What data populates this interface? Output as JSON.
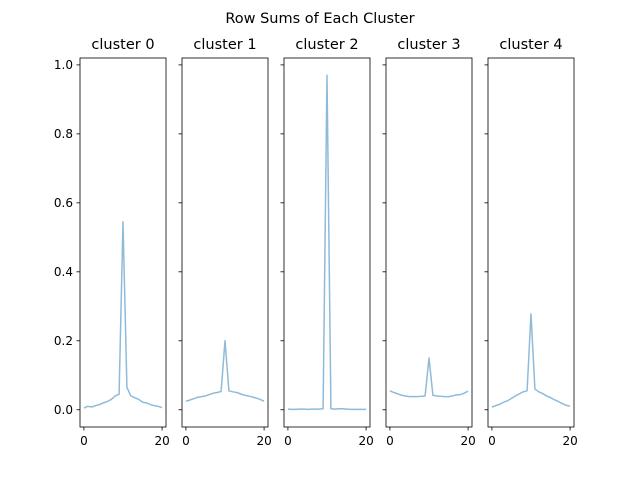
{
  "chart_data": {
    "type": "line",
    "title": "Row Sums of Each Cluster",
    "xlim": [
      -1.0,
      21.0
    ],
    "ylim": [
      -0.05,
      1.02
    ],
    "x_ticks": [
      0,
      20
    ],
    "y_ticks": [
      0.0,
      0.2,
      0.4,
      0.6,
      0.8,
      1.0
    ],
    "y_tick_labels": [
      "0.0",
      "0.2",
      "0.4",
      "0.6",
      "0.8",
      "1.0"
    ],
    "sharey": true,
    "line_color": "#1f77b4",
    "line_alpha": 0.5,
    "panels": [
      {
        "title": "cluster 0",
        "x": [
          0,
          1,
          2,
          3,
          4,
          5,
          6,
          7,
          8,
          9,
          10,
          11,
          12,
          13,
          14,
          15,
          16,
          17,
          18,
          19,
          20
        ],
        "y": [
          0.005,
          0.01,
          0.008,
          0.012,
          0.015,
          0.02,
          0.024,
          0.03,
          0.04,
          0.045,
          0.545,
          0.065,
          0.04,
          0.035,
          0.03,
          0.022,
          0.02,
          0.015,
          0.012,
          0.01,
          0.006
        ]
      },
      {
        "title": "cluster 1",
        "x": [
          0,
          1,
          2,
          3,
          4,
          5,
          6,
          7,
          8,
          9,
          10,
          11,
          12,
          13,
          14,
          15,
          16,
          17,
          18,
          19,
          20
        ],
        "y": [
          0.025,
          0.028,
          0.032,
          0.036,
          0.038,
          0.04,
          0.044,
          0.048,
          0.05,
          0.053,
          0.2,
          0.055,
          0.052,
          0.05,
          0.046,
          0.042,
          0.04,
          0.037,
          0.034,
          0.03,
          0.025
        ]
      },
      {
        "title": "cluster 2",
        "x": [
          0,
          1,
          2,
          3,
          4,
          5,
          6,
          7,
          8,
          9,
          10,
          11,
          12,
          13,
          14,
          15,
          16,
          17,
          18,
          19,
          20
        ],
        "y": [
          0.002,
          0.001,
          0.001,
          0.002,
          0.002,
          0.001,
          0.002,
          0.002,
          0.002,
          0.003,
          0.97,
          0.003,
          0.002,
          0.003,
          0.003,
          0.002,
          0.001,
          0.001,
          0.001,
          0.001,
          0.001
        ]
      },
      {
        "title": "cluster 3",
        "x": [
          0,
          1,
          2,
          3,
          4,
          5,
          6,
          7,
          8,
          9,
          10,
          11,
          12,
          13,
          14,
          15,
          16,
          17,
          18,
          19,
          20
        ],
        "y": [
          0.055,
          0.05,
          0.046,
          0.042,
          0.04,
          0.038,
          0.038,
          0.038,
          0.039,
          0.04,
          0.15,
          0.042,
          0.04,
          0.039,
          0.038,
          0.038,
          0.04,
          0.043,
          0.044,
          0.048,
          0.054
        ]
      },
      {
        "title": "cluster 4",
        "x": [
          0,
          1,
          2,
          3,
          4,
          5,
          6,
          7,
          8,
          9,
          10,
          11,
          12,
          13,
          14,
          15,
          16,
          17,
          18,
          19,
          20
        ],
        "y": [
          0.008,
          0.012,
          0.016,
          0.022,
          0.026,
          0.033,
          0.04,
          0.046,
          0.052,
          0.055,
          0.278,
          0.06,
          0.052,
          0.047,
          0.04,
          0.035,
          0.029,
          0.024,
          0.018,
          0.013,
          0.01
        ]
      }
    ]
  }
}
